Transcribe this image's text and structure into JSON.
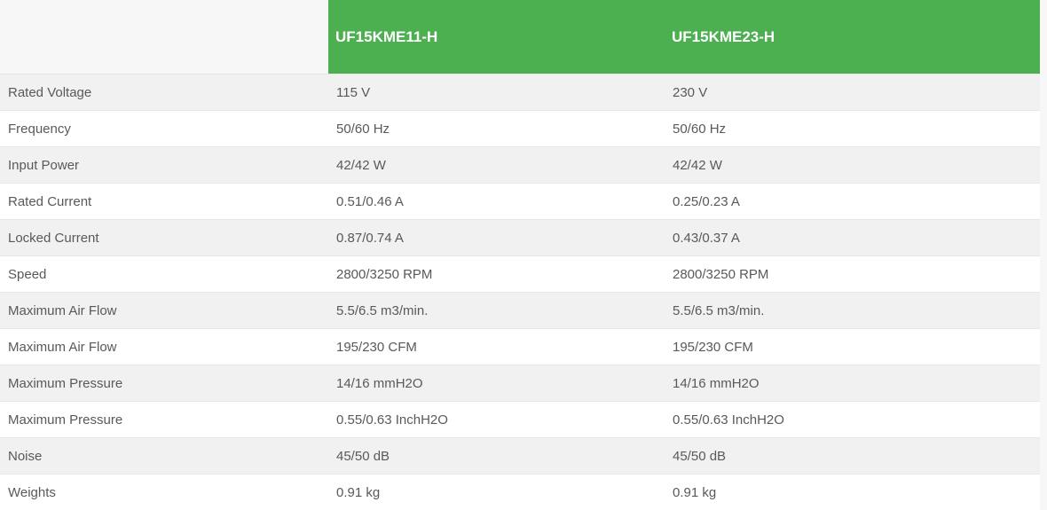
{
  "colors": {
    "header_bg": "#4caf50",
    "header_text": "#ffffff",
    "row_stripe": "#f1f1f1",
    "row_white": "#ffffff",
    "border": "#e7e7e7",
    "page_bg": "#f7f7f7",
    "cell_text": "#595959"
  },
  "table": {
    "header": {
      "col2": "UF15KME11-H",
      "col3": "UF15KME23-H"
    },
    "rows": [
      {
        "label": "Rated Voltage",
        "v1": "115 V",
        "v2": "230 V"
      },
      {
        "label": "Frequency",
        "v1": "50/60 Hz",
        "v2": "50/60 Hz"
      },
      {
        "label": "Input Power",
        "v1": "42/42 W",
        "v2": "42/42 W"
      },
      {
        "label": "Rated Current",
        "v1": "0.51/0.46 A",
        "v2": "0.25/0.23 A"
      },
      {
        "label": "Locked Current",
        "v1": "0.87/0.74 A",
        "v2": "0.43/0.37 A"
      },
      {
        "label": "Speed",
        "v1": "2800/3250 RPM",
        "v2": "2800/3250 RPM"
      },
      {
        "label": "Maximum Air Flow",
        "v1": "5.5/6.5 m3/min.",
        "v2": "5.5/6.5 m3/min."
      },
      {
        "label": "Maximum Air Flow",
        "v1": "195/230 CFM",
        "v2": "195/230 CFM"
      },
      {
        "label": "Maximum Pressure",
        "v1": "14/16 mmH2O",
        "v2": "14/16 mmH2O"
      },
      {
        "label": "Maximum Pressure",
        "v1": "0.55/0.63 InchH2O",
        "v2": "0.55/0.63 InchH2O"
      },
      {
        "label": "Noise",
        "v1": "45/50 dB",
        "v2": "45/50 dB"
      },
      {
        "label": "Weights",
        "v1": "0.91 kg",
        "v2": "0.91 kg"
      }
    ]
  }
}
